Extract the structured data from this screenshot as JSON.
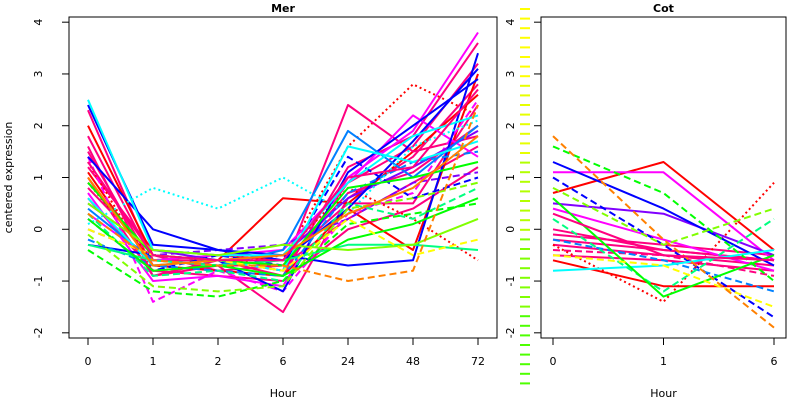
{
  "colors": [
    "#ff0000",
    "#ff8000",
    "#ffff00",
    "#80ff00",
    "#00ff00",
    "#00ff80",
    "#00ffff",
    "#0080ff",
    "#0000ff",
    "#8000ff",
    "#ff00ff",
    "#ff0080"
  ],
  "chart_data": [
    {
      "type": "line",
      "title": "Mer",
      "xlabel": "Hour",
      "ylabel": "centered expression",
      "categories": [
        "0",
        "1",
        "2",
        "6",
        "24",
        "48",
        "72"
      ],
      "ylim": [
        -2.1,
        4.1
      ],
      "yticks": [
        -2,
        -1,
        0,
        1,
        2,
        3,
        4
      ],
      "grid": false,
      "legend": "none",
      "series": [
        {
          "color": "#ff0080",
          "dash": "solid",
          "values": [
            1.8,
            -0.6,
            -0.7,
            -1.6,
            0.6,
            1.4,
            2.8
          ]
        },
        {
          "color": "#ff0080",
          "dash": "solid",
          "values": [
            1.5,
            -0.7,
            -0.6,
            -0.9,
            1.2,
            1.8,
            3.6
          ]
        },
        {
          "color": "#ff0080",
          "dash": "solid",
          "values": [
            0.8,
            -0.5,
            -0.8,
            -0.7,
            0.2,
            0.9,
            1.6
          ]
        },
        {
          "color": "#ff0080",
          "dash": "solid",
          "values": [
            1.2,
            -0.4,
            -0.5,
            -0.6,
            0.5,
            0.5,
            2.4
          ]
        },
        {
          "color": "#ff0080",
          "dash": "solid",
          "values": [
            2.3,
            -0.6,
            -0.6,
            -0.8,
            0.9,
            1.6,
            3.2
          ]
        },
        {
          "color": "#ff0080",
          "dash": "solid",
          "values": [
            0.6,
            -0.8,
            -0.9,
            -1.0,
            0.0,
            0.4,
            1.2
          ]
        },
        {
          "color": "#ff0080",
          "dash": "solid",
          "values": [
            1.0,
            -0.9,
            -0.7,
            -0.7,
            0.7,
            1.1,
            2.0
          ]
        },
        {
          "color": "#ff0000",
          "dash": "solid",
          "values": [
            2.0,
            -0.5,
            -0.6,
            0.6,
            0.5,
            1.5,
            2.6
          ]
        },
        {
          "color": "#ff0000",
          "dash": "solid",
          "values": [
            1.1,
            -0.7,
            -0.8,
            -0.9,
            0.4,
            -0.4,
            3.0
          ]
        },
        {
          "color": "#ff0000",
          "dash": "dotted",
          "values": [
            0.9,
            -0.6,
            -0.5,
            -0.6,
            1.6,
            2.8,
            2.2
          ]
        },
        {
          "color": "#ff0000",
          "dash": "dotted",
          "values": [
            1.3,
            -0.8,
            -0.7,
            -0.5,
            0.8,
            0.2,
            -0.6
          ]
        },
        {
          "color": "#ff0080",
          "dash": "solid",
          "values": [
            1.6,
            -0.9,
            -0.6,
            -0.8,
            2.4,
            1.5,
            1.8
          ]
        },
        {
          "color": "#ff00ff",
          "dash": "solid",
          "values": [
            0.7,
            -1.0,
            -0.9,
            -1.1,
            1.0,
            1.9,
            3.8
          ]
        },
        {
          "color": "#ff00ff",
          "dash": "dashed",
          "values": [
            1.4,
            -1.4,
            -0.8,
            -1.2,
            0.3,
            0.7,
            2.5
          ]
        },
        {
          "color": "#ff00ff",
          "dash": "solid",
          "values": [
            0.3,
            -0.6,
            -0.5,
            -0.4,
            0.9,
            2.2,
            1.4
          ]
        },
        {
          "color": "#8000ff",
          "dash": "solid",
          "values": [
            0.5,
            -0.4,
            -0.6,
            -0.5,
            0.6,
            1.2,
            1.9
          ]
        },
        {
          "color": "#8000ff",
          "dash": "dashed",
          "values": [
            0.0,
            -0.5,
            -0.4,
            -0.3,
            0.2,
            0.9,
            1.1
          ]
        },
        {
          "color": "#0000ff",
          "dash": "solid",
          "values": [
            2.4,
            -0.3,
            -0.4,
            -0.5,
            -0.7,
            -0.6,
            3.4
          ]
        },
        {
          "color": "#0000ff",
          "dash": "solid",
          "values": [
            -0.3,
            -0.5,
            -0.6,
            -1.2,
            1.1,
            2.0,
            2.9
          ]
        },
        {
          "color": "#0000ff",
          "dash": "solid",
          "values": [
            1.4,
            0.0,
            -0.4,
            -0.6,
            0.4,
            1.7,
            3.1
          ]
        },
        {
          "color": "#0000ff",
          "dash": "dashed",
          "values": [
            0.2,
            -0.8,
            -0.5,
            -0.7,
            1.4,
            0.6,
            1.0
          ]
        },
        {
          "color": "#0080ff",
          "dash": "solid",
          "values": [
            0.4,
            -0.6,
            -0.7,
            -0.4,
            1.9,
            1.0,
            2.0
          ]
        },
        {
          "color": "#0080ff",
          "dash": "dashed",
          "values": [
            -0.2,
            -0.7,
            -0.8,
            -0.9,
            0.7,
            1.3,
            1.5
          ]
        },
        {
          "color": "#00ffff",
          "dash": "dotted",
          "values": [
            0.1,
            0.8,
            0.4,
            1.0,
            0.3,
            1.6,
            2.1
          ]
        },
        {
          "color": "#00ffff",
          "dash": "solid",
          "values": [
            2.5,
            -0.4,
            -0.5,
            -0.5,
            0.9,
            1.8,
            2.2
          ]
        },
        {
          "color": "#00ffff",
          "dash": "solid",
          "values": [
            0.6,
            -0.7,
            -0.6,
            -0.8,
            1.6,
            1.3,
            1.7
          ]
        },
        {
          "color": "#00ff80",
          "dash": "solid",
          "values": [
            -0.3,
            -0.6,
            -0.7,
            -0.6,
            -0.3,
            -0.3,
            -0.4
          ]
        },
        {
          "color": "#00ff80",
          "dash": "dashed",
          "values": [
            0.3,
            -0.9,
            -0.8,
            -1.0,
            0.5,
            0.2,
            0.8
          ]
        },
        {
          "color": "#00ff00",
          "dash": "solid",
          "values": [
            0.2,
            -0.8,
            -0.7,
            -0.9,
            -0.2,
            0.1,
            0.6
          ]
        },
        {
          "color": "#00ff00",
          "dash": "dashed",
          "values": [
            -0.4,
            -1.2,
            -1.3,
            -1.0,
            0.1,
            0.3,
            0.5
          ]
        },
        {
          "color": "#00ff00",
          "dash": "solid",
          "values": [
            0.9,
            -0.5,
            -0.6,
            -0.7,
            0.8,
            1.0,
            1.3
          ]
        },
        {
          "color": "#80ff00",
          "dash": "solid",
          "values": [
            0.5,
            -0.4,
            -0.5,
            -0.3,
            -0.4,
            -0.3,
            0.2
          ]
        },
        {
          "color": "#80ff00",
          "dash": "dashed",
          "values": [
            -0.1,
            -1.1,
            -1.2,
            -1.1,
            0.4,
            0.6,
            0.9
          ]
        },
        {
          "color": "#ffff00",
          "dash": "dashed",
          "values": [
            0.0,
            -0.5,
            -0.6,
            -0.8,
            0.2,
            -0.5,
            -0.2
          ]
        },
        {
          "color": "#ff8000",
          "dash": "dashed",
          "values": [
            0.3,
            -0.6,
            -0.7,
            -0.7,
            -1.0,
            -0.8,
            2.4
          ]
        },
        {
          "color": "#ff8000",
          "dash": "solid",
          "values": [
            1.0,
            -0.7,
            -0.6,
            -0.5,
            0.3,
            0.8,
            1.8
          ]
        },
        {
          "color": "#ff0080",
          "dash": "solid",
          "values": [
            1.3,
            -0.5,
            -0.6,
            -0.6,
            1.0,
            1.2,
            2.7
          ]
        }
      ]
    },
    {
      "type": "line",
      "title": "Cot",
      "xlabel": "Hour",
      "ylabel": "",
      "categories": [
        "0",
        "1",
        "6"
      ],
      "ylim": [
        -2.1,
        4.1
      ],
      "yticks": [
        -2,
        -1,
        0,
        1,
        2,
        3,
        4
      ],
      "grid": false,
      "legend": "none",
      "series": [
        {
          "color": "#ff0080",
          "dash": "solid",
          "values": [
            -0.3,
            -0.5,
            -0.7
          ]
        },
        {
          "color": "#ff0080",
          "dash": "solid",
          "values": [
            -0.2,
            -0.4,
            -0.6
          ]
        },
        {
          "color": "#ff0080",
          "dash": "solid",
          "values": [
            -0.5,
            -0.6,
            -0.8
          ]
        },
        {
          "color": "#ff0080",
          "dash": "solid",
          "values": [
            -0.1,
            -0.3,
            -0.5
          ]
        },
        {
          "color": "#ff0080",
          "dash": "dashed",
          "values": [
            -0.4,
            -0.5,
            -0.9
          ]
        },
        {
          "color": "#ff0080",
          "dash": "solid",
          "values": [
            0.0,
            -0.4,
            -0.6
          ]
        },
        {
          "color": "#ff0000",
          "dash": "solid",
          "values": [
            0.7,
            1.3,
            -0.4
          ]
        },
        {
          "color": "#ff0000",
          "dash": "solid",
          "values": [
            -0.6,
            -1.1,
            -1.1
          ]
        },
        {
          "color": "#ff0000",
          "dash": "dotted",
          "values": [
            -0.3,
            -1.4,
            0.9
          ]
        },
        {
          "color": "#ff00ff",
          "dash": "solid",
          "values": [
            1.1,
            1.1,
            -0.6
          ]
        },
        {
          "color": "#ff00ff",
          "dash": "solid",
          "values": [
            0.4,
            -0.2,
            -0.8
          ]
        },
        {
          "color": "#8000ff",
          "dash": "solid",
          "values": [
            0.5,
            0.3,
            -0.5
          ]
        },
        {
          "color": "#0000ff",
          "dash": "solid",
          "values": [
            1.3,
            0.4,
            -0.7
          ]
        },
        {
          "color": "#0000ff",
          "dash": "dashed",
          "values": [
            1.0,
            -0.3,
            -1.7
          ]
        },
        {
          "color": "#0080ff",
          "dash": "dashed",
          "values": [
            -0.2,
            -0.6,
            -1.2
          ]
        },
        {
          "color": "#00ffff",
          "dash": "solid",
          "values": [
            -0.8,
            -0.7,
            -0.4
          ]
        },
        {
          "color": "#00ff80",
          "dash": "dashed",
          "values": [
            0.2,
            -1.2,
            0.2
          ]
        },
        {
          "color": "#00ff00",
          "dash": "dashed",
          "values": [
            1.6,
            0.7,
            -1.0
          ]
        },
        {
          "color": "#00ff00",
          "dash": "solid",
          "values": [
            0.6,
            -1.3,
            -0.5
          ]
        },
        {
          "color": "#80ff00",
          "dash": "dashed",
          "values": [
            0.8,
            -0.3,
            0.4
          ]
        },
        {
          "color": "#ffff00",
          "dash": "dashed",
          "values": [
            -0.5,
            -0.7,
            -1.5
          ]
        },
        {
          "color": "#ff8000",
          "dash": "dashed",
          "values": [
            1.8,
            -0.2,
            -1.9
          ]
        },
        {
          "color": "#ff0080",
          "dash": "solid",
          "values": [
            0.3,
            -0.5,
            -0.6
          ]
        }
      ]
    }
  ]
}
